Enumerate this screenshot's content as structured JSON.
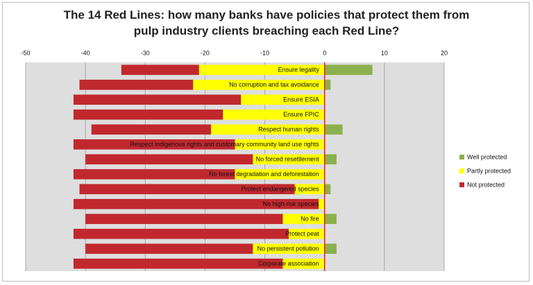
{
  "chart_data": {
    "type": "diverging_stacked_bar",
    "title": "The 14 Red Lines: how many banks have policies that protect them from pulp industry clients breaching each Red Line?",
    "categories": [
      "Ensure legality",
      "No corruption and tax avoidance",
      "Ensure ESIA",
      "Ensure FPIC",
      "Respect human rights",
      "Respect indigenous rights and customary community land use rights",
      "No forced resettlement",
      "No forest degradation and deforestation",
      "Protect endangered species",
      "No high-risk species",
      "No fire",
      "Protect peat",
      "No persistent pollution",
      "Corporate association"
    ],
    "series": [
      {
        "name": "Well protected",
        "color": "#8db04e",
        "values": [
          8,
          1,
          0,
          0,
          3,
          0,
          2,
          0,
          1,
          0,
          2,
          0,
          2,
          0
        ]
      },
      {
        "name": "Partly protected",
        "color": "#ffff00",
        "values": [
          -21,
          -22,
          -14,
          -17,
          -19,
          -15,
          -12,
          -15,
          -5,
          -1,
          -7,
          -6,
          -12,
          -7
        ]
      },
      {
        "name": "Not protected",
        "color": "#c0282e",
        "values": [
          -13,
          -19,
          -28,
          -25,
          -20,
          -27,
          -28,
          -27,
          -36,
          -41,
          -33,
          -36,
          -28,
          -35
        ]
      }
    ],
    "xlim": [
      -50,
      20
    ],
    "xticks": [
      -50,
      -40,
      -30,
      -20,
      -10,
      0,
      10,
      20
    ],
    "grid": true
  }
}
